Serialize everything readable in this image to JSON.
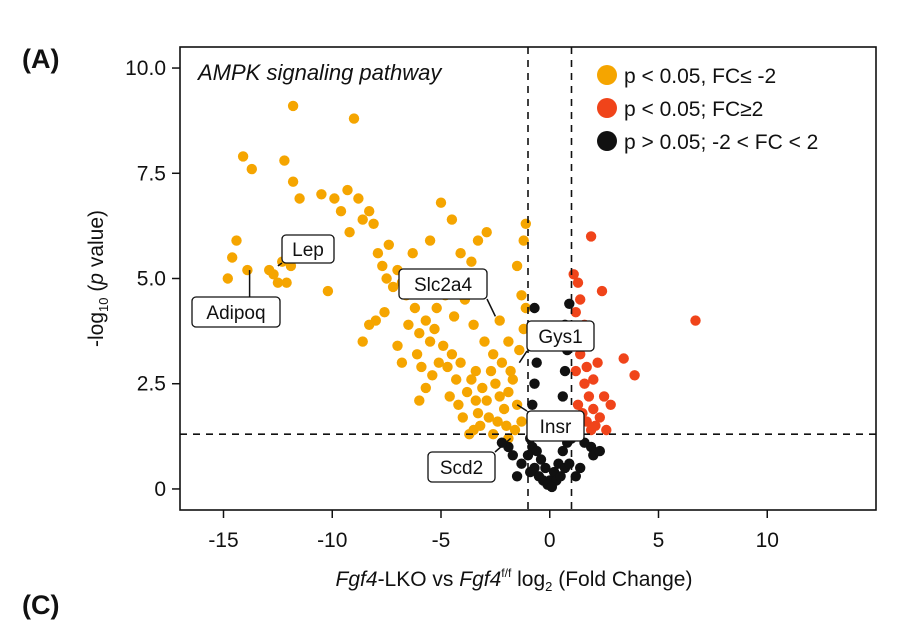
{
  "panel_labels": {
    "main": "(A)",
    "next": "(C)"
  },
  "chart_data": {
    "type": "scatter",
    "title": "",
    "annotation_title": "AMPK signaling pathway",
    "xlabel": {
      "italic": "Fgf4",
      "text": "-LKO vs ",
      "italic2": "Fgf4",
      "sup": "f/f",
      "text2": " log",
      "sub": "2",
      "text3": " (Fold Change)"
    },
    "ylabel": {
      "pre": "-log",
      "sub": "10",
      "mid": " (",
      "italic": "p",
      "post": " value)"
    },
    "xlim": [
      -17,
      15
    ],
    "ylim": [
      -0.5,
      10.5
    ],
    "xticks": [
      -15,
      -10,
      -5,
      0,
      5,
      10
    ],
    "xtick_labels": [
      "-15",
      "-10",
      "-5",
      "0",
      "5",
      "10"
    ],
    "yticks": [
      0,
      2.5,
      5,
      7.5,
      10
    ],
    "ytick_labels": [
      "0",
      "2.5",
      "5.0",
      "7.5",
      "10.0"
    ],
    "thresholds": {
      "x": [
        -1,
        1
      ],
      "y": 1.3
    },
    "grid": false,
    "legend_position": "top-right",
    "legend": [
      {
        "label": "p < 0.05, FC≤ -2",
        "color": "#F5A500"
      },
      {
        "label": "p < 0.05; FC≥2",
        "color": "#F0441A"
      },
      {
        "label": "p > 0.05; -2 < FC < 2",
        "color": "#111111"
      }
    ],
    "series": [
      {
        "color": "#F5A500",
        "points": [
          [
            -14.8,
            5.0
          ],
          [
            -14.6,
            5.5
          ],
          [
            -14.4,
            5.9
          ],
          [
            -13.9,
            5.2
          ],
          [
            -14.1,
            7.9
          ],
          [
            -13.7,
            7.6
          ],
          [
            -12.9,
            5.2
          ],
          [
            -12.5,
            4.9
          ],
          [
            -12.7,
            5.1
          ],
          [
            -12.3,
            5.4
          ],
          [
            -12.1,
            4.9
          ],
          [
            -11.9,
            5.3
          ],
          [
            -12.2,
            7.8
          ],
          [
            -11.8,
            7.3
          ],
          [
            -11.5,
            6.9
          ],
          [
            -11.8,
            9.1
          ],
          [
            -11.3,
            5.6
          ],
          [
            -11.1,
            5.8
          ],
          [
            -10.8,
            5.5
          ],
          [
            -10.5,
            7.0
          ],
          [
            -10.2,
            4.7
          ],
          [
            -9.9,
            6.9
          ],
          [
            -9.6,
            6.6
          ],
          [
            -9.3,
            7.1
          ],
          [
            -9.0,
            8.8
          ],
          [
            -9.2,
            6.1
          ],
          [
            -8.8,
            6.9
          ],
          [
            -8.6,
            6.4
          ],
          [
            -8.3,
            6.6
          ],
          [
            -8.1,
            6.3
          ],
          [
            -7.9,
            5.6
          ],
          [
            -7.7,
            5.3
          ],
          [
            -7.5,
            5.0
          ],
          [
            -7.4,
            5.8
          ],
          [
            -7.2,
            4.8
          ],
          [
            -7.6,
            4.2
          ],
          [
            -8.0,
            4.0
          ],
          [
            -8.3,
            3.9
          ],
          [
            -8.6,
            3.5
          ],
          [
            -7.0,
            5.2
          ],
          [
            -6.8,
            4.9
          ],
          [
            -6.6,
            4.6
          ],
          [
            -6.4,
            5.1
          ],
          [
            -6.5,
            3.9
          ],
          [
            -6.2,
            4.3
          ],
          [
            -6.0,
            3.7
          ],
          [
            -6.1,
            3.2
          ],
          [
            -5.9,
            2.9
          ],
          [
            -5.7,
            4.0
          ],
          [
            -5.5,
            3.5
          ],
          [
            -5.3,
            3.8
          ],
          [
            -5.1,
            3.0
          ],
          [
            -5.4,
            2.7
          ],
          [
            -5.7,
            2.4
          ],
          [
            -6.0,
            2.1
          ],
          [
            -4.9,
            3.4
          ],
          [
            -4.7,
            2.9
          ],
          [
            -4.5,
            3.2
          ],
          [
            -4.3,
            2.6
          ],
          [
            -4.6,
            2.2
          ],
          [
            -4.2,
            2.0
          ],
          [
            -4.0,
            1.7
          ],
          [
            -3.8,
            2.3
          ],
          [
            -3.6,
            2.6
          ],
          [
            -3.4,
            2.1
          ],
          [
            -3.3,
            1.8
          ],
          [
            -3.1,
            2.4
          ],
          [
            -2.9,
            2.1
          ],
          [
            -2.7,
            2.8
          ],
          [
            -2.5,
            2.5
          ],
          [
            -2.3,
            2.2
          ],
          [
            -2.1,
            1.9
          ],
          [
            -1.9,
            2.3
          ],
          [
            -1.7,
            2.6
          ],
          [
            -1.5,
            2.0
          ],
          [
            -1.3,
            1.6
          ],
          [
            -3.5,
            1.4
          ],
          [
            -3.2,
            1.5
          ],
          [
            -2.8,
            1.7
          ],
          [
            -2.4,
            1.6
          ],
          [
            -2.0,
            1.5
          ],
          [
            -1.6,
            1.4
          ],
          [
            -4.4,
            4.1
          ],
          [
            -3.9,
            4.5
          ],
          [
            -3.5,
            3.9
          ],
          [
            -3.0,
            3.5
          ],
          [
            -2.6,
            3.2
          ],
          [
            -2.2,
            3.0
          ],
          [
            -1.8,
            2.8
          ],
          [
            -1.4,
            3.3
          ],
          [
            -1.2,
            3.8
          ],
          [
            -1.1,
            4.3
          ],
          [
            -1.3,
            4.6
          ],
          [
            -1.5,
            5.3
          ],
          [
            -1.2,
            5.9
          ],
          [
            -1.1,
            6.3
          ],
          [
            -3.3,
            5.9
          ],
          [
            -3.6,
            5.4
          ],
          [
            -4.1,
            5.6
          ],
          [
            -2.9,
            6.1
          ],
          [
            -4.5,
            6.4
          ],
          [
            -5.0,
            6.8
          ],
          [
            -5.5,
            5.9
          ],
          [
            -2.3,
            4.0
          ],
          [
            -1.9,
            3.5
          ],
          [
            -4.8,
            4.6
          ],
          [
            -5.2,
            4.3
          ],
          [
            -6.3,
            5.6
          ],
          [
            -7.0,
            3.4
          ],
          [
            -6.8,
            3.0
          ],
          [
            -3.7,
            1.3
          ],
          [
            -2.6,
            1.3
          ],
          [
            -1.9,
            1.2
          ],
          [
            -4.1,
            3.0
          ],
          [
            -3.4,
            2.8
          ]
        ]
      },
      {
        "color": "#F0441A",
        "points": [
          [
            1.1,
            5.1
          ],
          [
            1.3,
            4.9
          ],
          [
            1.2,
            4.2
          ],
          [
            1.5,
            3.6
          ],
          [
            1.4,
            3.2
          ],
          [
            1.2,
            2.8
          ],
          [
            1.6,
            2.5
          ],
          [
            1.8,
            2.2
          ],
          [
            1.3,
            2.0
          ],
          [
            1.5,
            1.8
          ],
          [
            1.7,
            1.6
          ],
          [
            1.9,
            1.4
          ],
          [
            2.1,
            1.5
          ],
          [
            2.3,
            1.7
          ],
          [
            2.0,
            2.6
          ],
          [
            2.2,
            3.0
          ],
          [
            1.8,
            3.4
          ],
          [
            1.6,
            3.9
          ],
          [
            1.9,
            6.0
          ],
          [
            2.4,
            4.7
          ],
          [
            2.5,
            2.2
          ],
          [
            2.6,
            1.4
          ],
          [
            2.8,
            2.0
          ],
          [
            3.4,
            3.1
          ],
          [
            3.9,
            2.7
          ],
          [
            6.7,
            4.0
          ],
          [
            1.4,
            4.5
          ],
          [
            1.7,
            2.9
          ],
          [
            2.0,
            1.9
          ],
          [
            1.1,
            3.5
          ]
        ]
      },
      {
        "color": "#111111",
        "points": [
          [
            -0.9,
            1.2
          ],
          [
            -0.8,
            1.0
          ],
          [
            -0.6,
            0.9
          ],
          [
            -0.4,
            0.7
          ],
          [
            -0.2,
            0.5
          ],
          [
            0.0,
            0.2
          ],
          [
            0.2,
            0.4
          ],
          [
            0.4,
            0.6
          ],
          [
            0.6,
            0.9
          ],
          [
            0.8,
            1.1
          ],
          [
            1.0,
            1.2
          ],
          [
            -1.0,
            0.8
          ],
          [
            -0.7,
            0.5
          ],
          [
            -0.5,
            0.3
          ],
          [
            -0.3,
            0.2
          ],
          [
            0.3,
            0.2
          ],
          [
            0.5,
            0.3
          ],
          [
            0.7,
            0.5
          ],
          [
            -0.9,
            0.4
          ],
          [
            0.9,
            0.6
          ],
          [
            -1.3,
            0.6
          ],
          [
            -1.5,
            0.3
          ],
          [
            1.2,
            0.3
          ],
          [
            1.4,
            0.5
          ],
          [
            -0.1,
            0.1
          ],
          [
            0.1,
            0.05
          ],
          [
            -0.8,
            2.0
          ],
          [
            -0.7,
            2.5
          ],
          [
            -0.6,
            3.0
          ],
          [
            -0.5,
            3.6
          ],
          [
            -0.7,
            4.3
          ],
          [
            0.6,
            2.2
          ],
          [
            0.7,
            2.8
          ],
          [
            0.8,
            3.3
          ],
          [
            0.7,
            3.9
          ],
          [
            0.9,
            4.4
          ],
          [
            -1.9,
            1.0
          ],
          [
            -1.7,
            0.8
          ],
          [
            1.9,
            1.0
          ],
          [
            2.0,
            0.8
          ],
          [
            2.3,
            0.9
          ],
          [
            -2.2,
            1.1
          ],
          [
            1.6,
            1.1
          ],
          [
            -0.8,
            1.5
          ],
          [
            0.8,
            1.6
          ]
        ]
      }
    ],
    "gene_labels": [
      {
        "label": "Lep",
        "point": [
          -12.5,
          5.3
        ]
      },
      {
        "label": "Adipoq",
        "point": [
          -13.8,
          5.2
        ]
      },
      {
        "label": "Slc2a4",
        "point": [
          -2.5,
          4.1
        ]
      },
      {
        "label": "Gys1",
        "point": [
          -1.4,
          3.0
        ]
      },
      {
        "label": "Insr",
        "point": [
          -1.5,
          2.0
        ]
      },
      {
        "label": "Scd2",
        "point": [
          -1.8,
          1.2
        ]
      }
    ]
  }
}
